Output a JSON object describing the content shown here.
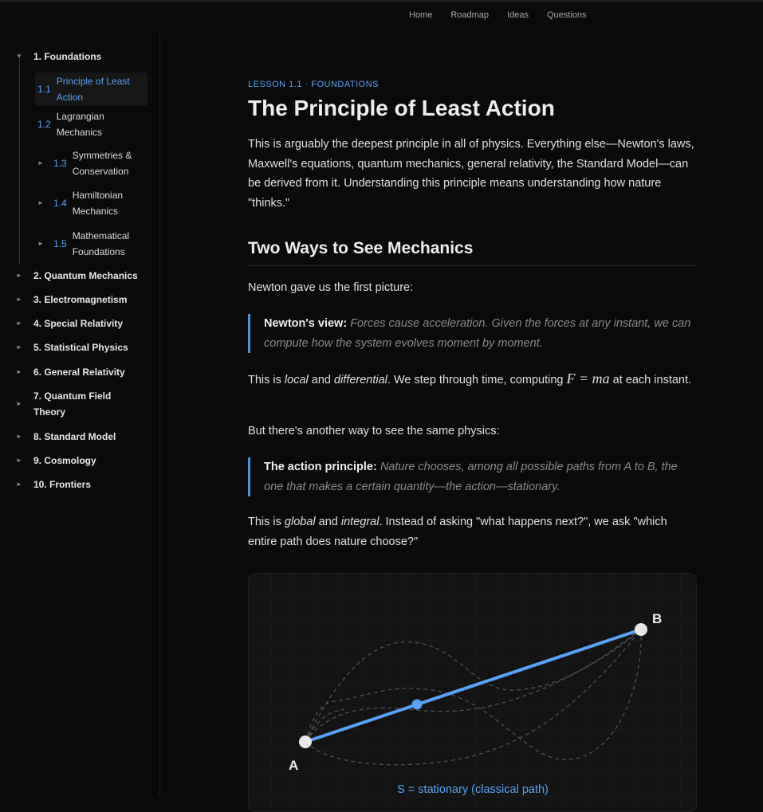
{
  "nav": {
    "items": [
      "Home",
      "Roadmap",
      "Ideas",
      "Questions"
    ]
  },
  "sidebar": {
    "sections": [
      {
        "label": "1. Foundations",
        "expanded": true
      },
      {
        "label": "2. Quantum Mechanics"
      },
      {
        "label": "3. Electromagnetism"
      },
      {
        "label": "4. Special Relativity"
      },
      {
        "label": "5. Statistical Physics"
      },
      {
        "label": "6. General Relativity"
      },
      {
        "label": "7. Quantum Field Theory"
      },
      {
        "label": "8. Standard Model"
      },
      {
        "label": "9. Cosmology"
      },
      {
        "label": "10. Frontiers"
      }
    ],
    "subitems": [
      {
        "num": "1.1",
        "label": "Principle of Least Action",
        "active": true
      },
      {
        "num": "1.2",
        "label": "Lagrangian Mechanics"
      },
      {
        "num": "1.3",
        "label": "Symmetries & Conservation"
      },
      {
        "num": "1.4",
        "label": "Hamiltonian Mechanics"
      },
      {
        "num": "1.5",
        "label": "Mathematical Foundations"
      }
    ]
  },
  "lesson": {
    "eyebrow": "LESSON 1.1 · FOUNDATIONS",
    "title": "The Principle of Least Action",
    "intro": "This is arguably the deepest principle in all of physics. Everything else—Newton's laws, Maxwell's equations, quantum mechanics, general relativity, the Standard Model—can be derived from it. Understanding this principle means understanding how nature \"thinks.\"",
    "h2": "Two Ways to See Mechanics",
    "p1": "Newton gave us the first picture:",
    "q1_label": "Newton's view:",
    "q1_text": "Forces cause acceleration. Given the forces at any instant, we can compute how the system evolves moment by moment.",
    "p2a": "This is ",
    "p2b": "local",
    "p2c": " and ",
    "p2d": "differential",
    "p2e": ". We step through time, computing ",
    "p2f": "F = ma",
    "p2g": " at each instant.",
    "p3": "But there's another way to see the same physics:",
    "q2_label": "The action principle:",
    "q2_text": "Nature chooses, among all possible paths from A to B, the one that makes a certain quantity—the action—stationary.",
    "p4a": "This is ",
    "p4b": "global",
    "p4c": " and ",
    "p4d": "integral",
    "p4e": ". Instead of asking \"what happens next?\", we ask \"which entire path does nature choose?\""
  },
  "diagram": {
    "label_a": "A",
    "label_b": "B",
    "caption": "S = stationary (classical path)",
    "accent": "#5aa2f5"
  }
}
